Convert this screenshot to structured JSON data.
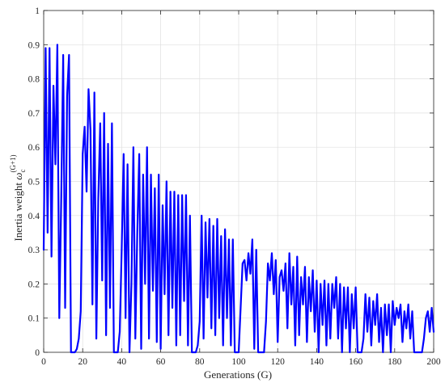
{
  "chart_data": {
    "type": "line",
    "xlabel": "Generations (G)",
    "ylabel": {
      "main": "Inertia weight ",
      "symbol": "ω",
      "sub": "c",
      "sup": "(G+1)"
    },
    "xlim": [
      0,
      200
    ],
    "ylim": [
      0,
      1
    ],
    "x_ticks": [
      0,
      20,
      40,
      60,
      80,
      100,
      120,
      140,
      160,
      180,
      200
    ],
    "y_ticks": [
      0,
      0.1,
      0.2,
      0.3,
      0.4,
      0.5,
      0.6,
      0.7,
      0.8,
      0.9,
      1
    ],
    "x_tick_labels": [
      "0",
      "20",
      "40",
      "60",
      "80",
      "100",
      "120",
      "140",
      "160",
      "180",
      "200"
    ],
    "y_tick_labels": [
      "0",
      "0.1",
      "0.2",
      "0.3",
      "0.4",
      "0.5",
      "0.6",
      "0.7",
      "0.8",
      "0.9",
      "1"
    ],
    "grid": true,
    "color": "#0000ff",
    "series": [
      {
        "x": [
          0,
          1,
          2,
          3,
          4,
          5,
          6,
          7,
          8,
          9,
          10,
          11,
          12,
          13,
          14,
          15,
          16,
          17,
          18,
          19,
          20,
          21,
          22,
          23,
          24,
          25,
          26,
          27,
          28,
          29,
          30,
          31,
          32,
          33,
          34,
          35,
          36,
          37,
          38,
          39,
          40,
          41,
          42,
          43,
          44,
          45,
          46,
          47,
          48,
          49,
          50,
          51,
          52,
          53,
          54,
          55,
          56,
          57,
          58,
          59,
          60,
          61,
          62,
          63,
          64,
          65,
          66,
          67,
          68,
          69,
          70,
          71,
          72,
          73,
          74,
          75,
          76,
          77,
          78,
          79,
          80,
          81,
          82,
          83,
          84,
          85,
          86,
          87,
          88,
          89,
          90,
          91,
          92,
          93,
          94,
          95,
          96,
          97,
          98,
          99,
          100,
          101,
          102,
          103,
          104,
          105,
          106,
          107,
          108,
          109,
          110,
          111,
          112,
          113,
          114,
          115,
          116,
          117,
          118,
          119,
          120,
          121,
          122,
          123,
          124,
          125,
          126,
          127,
          128,
          129,
          130,
          131,
          132,
          133,
          134,
          135,
          136,
          137,
          138,
          139,
          140,
          141,
          142,
          143,
          144,
          145,
          146,
          147,
          148,
          149,
          150,
          151,
          152,
          153,
          154,
          155,
          156,
          157,
          158,
          159,
          160,
          161,
          162,
          163,
          164,
          165,
          166,
          167,
          168,
          169,
          170,
          171,
          172,
          173,
          174,
          175,
          176,
          177,
          178,
          179,
          180,
          181,
          182,
          183,
          184,
          185,
          186,
          187,
          188,
          189,
          190,
          191,
          192,
          193,
          194,
          195,
          196,
          197,
          198,
          199,
          200
        ],
        "y": [
          0.3,
          0.89,
          0.35,
          0.89,
          0.28,
          0.78,
          0.55,
          0.9,
          0.1,
          0.45,
          0.87,
          0.13,
          0.75,
          0.87,
          0.0,
          0.0,
          0.0,
          0.01,
          0.04,
          0.12,
          0.58,
          0.66,
          0.47,
          0.77,
          0.65,
          0.14,
          0.76,
          0.04,
          0.45,
          0.67,
          0.21,
          0.7,
          0.05,
          0.61,
          0.13,
          0.67,
          0.0,
          0.0,
          0.0,
          0.06,
          0.3,
          0.58,
          0.1,
          0.55,
          0.0,
          0.2,
          0.6,
          0.04,
          0.35,
          0.58,
          0.01,
          0.52,
          0.2,
          0.6,
          0.04,
          0.52,
          0.18,
          0.48,
          0.03,
          0.52,
          0.01,
          0.43,
          0.17,
          0.5,
          0.05,
          0.47,
          0.13,
          0.47,
          0.02,
          0.46,
          0.05,
          0.46,
          0.15,
          0.46,
          0.02,
          0.4,
          0.0,
          0.0,
          0.0,
          0.02,
          0.09,
          0.4,
          0.04,
          0.38,
          0.16,
          0.39,
          0.07,
          0.37,
          0.05,
          0.39,
          0.1,
          0.34,
          0.02,
          0.36,
          0.1,
          0.33,
          0.02,
          0.33,
          0.0,
          0.0,
          0.0,
          0.13,
          0.26,
          0.27,
          0.21,
          0.29,
          0.23,
          0.33,
          0.01,
          0.3,
          0.0,
          0.0,
          0.0,
          0.0,
          0.09,
          0.26,
          0.21,
          0.29,
          0.17,
          0.27,
          0.03,
          0.22,
          0.24,
          0.18,
          0.26,
          0.07,
          0.29,
          0.14,
          0.25,
          0.02,
          0.28,
          0.05,
          0.22,
          0.14,
          0.25,
          0.03,
          0.22,
          0.12,
          0.24,
          0.06,
          0.21,
          0.0,
          0.2,
          0.08,
          0.21,
          0.02,
          0.2,
          0.04,
          0.2,
          0.13,
          0.22,
          0.04,
          0.2,
          0.0,
          0.19,
          0.07,
          0.19,
          0.0,
          0.17,
          0.07,
          0.19,
          0.0,
          0.0,
          0.0,
          0.04,
          0.17,
          0.06,
          0.16,
          0.02,
          0.15,
          0.08,
          0.17,
          0.03,
          0.13,
          0.0,
          0.14,
          0.05,
          0.14,
          0.0,
          0.15,
          0.08,
          0.13,
          0.1,
          0.14,
          0.03,
          0.12,
          0.07,
          0.14,
          0.04,
          0.12,
          0.0,
          0.0,
          0.0,
          0.0,
          0.0,
          0.04,
          0.1,
          0.12,
          0.06,
          0.13,
          0.06
        ]
      }
    ]
  }
}
